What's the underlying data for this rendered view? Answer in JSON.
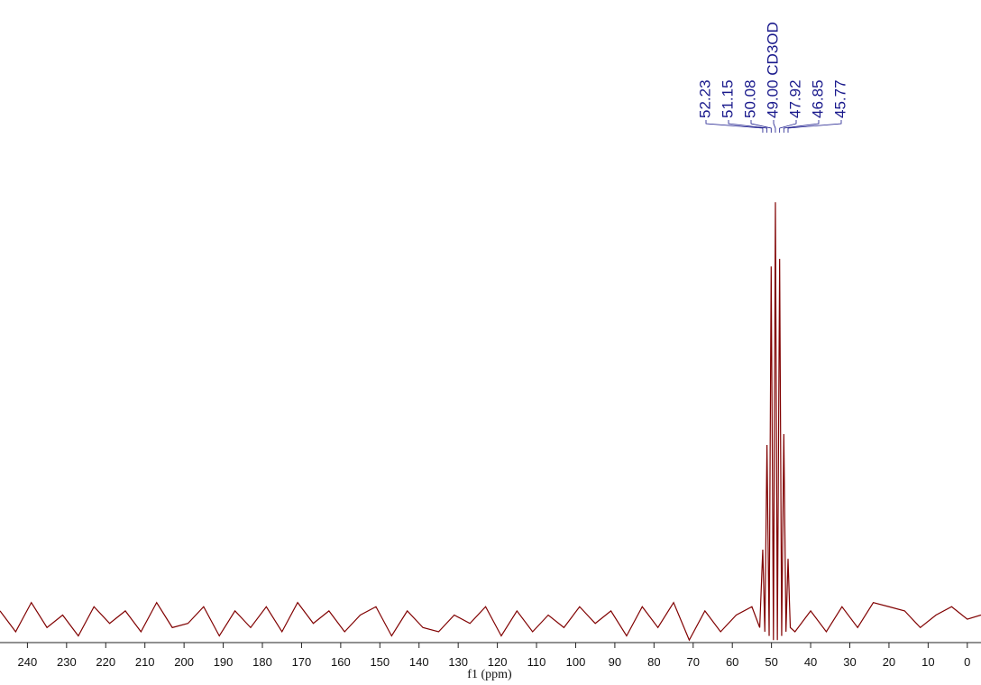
{
  "chart_data": {
    "type": "line",
    "x_label": "f1 (ppm)",
    "color": "#800000",
    "xlim": [
      247,
      -3.5
    ],
    "ylim": [
      -5.6,
      148.5
    ],
    "xticks": [
      240,
      230,
      220,
      210,
      200,
      190,
      180,
      170,
      160,
      150,
      140,
      130,
      120,
      110,
      100,
      90,
      80,
      70,
      60,
      50,
      40,
      30,
      20,
      10,
      0
    ],
    "x": [
      247,
      243,
      239,
      235,
      231,
      227,
      223,
      219,
      215,
      211,
      207,
      203,
      199,
      195,
      191,
      187,
      183,
      179,
      175,
      171,
      167,
      163,
      159,
      155,
      151,
      147,
      143,
      139,
      135,
      131,
      127,
      123,
      119,
      115,
      111,
      107,
      103,
      99,
      95,
      91,
      87,
      83,
      79,
      75,
      71,
      67,
      63,
      59,
      55,
      53,
      52.23,
      51.7,
      51.15,
      50.6,
      50.08,
      49.5,
      49,
      48.5,
      47.92,
      47.4,
      46.85,
      46.3,
      45.77,
      45.2,
      44,
      40,
      36,
      32,
      28,
      24,
      20,
      16,
      12,
      8,
      4,
      0,
      -3.5
    ],
    "values": [
      2,
      -3,
      4,
      -2,
      1,
      -4,
      3,
      -1,
      2,
      -3,
      4,
      -2,
      -1,
      3,
      -4,
      2,
      -2,
      3,
      -3,
      4,
      -1,
      2,
      -3,
      1,
      3,
      -4,
      2,
      -2,
      -3,
      1,
      -1,
      3,
      -4,
      2,
      -3,
      1,
      -2,
      3,
      -1,
      2,
      -4,
      3,
      -2,
      4,
      -5,
      2,
      -3,
      1,
      3,
      -2,
      16.7,
      -3,
      41.8,
      -4,
      84.6,
      -5,
      100,
      -5,
      86.4,
      -4,
      44.4,
      -3,
      14.5,
      -2,
      -3,
      2,
      -3,
      3,
      -2,
      4,
      3,
      2,
      -2,
      1,
      3,
      0,
      1
    ],
    "peak_labels": {
      "color": "#1a1a8c",
      "values": [
        52.23,
        51.15,
        50.08,
        49.0,
        47.92,
        46.85,
        45.77
      ],
      "value_labels": [
        "52.23",
        "51.15",
        "50.08",
        "49.00 CD3OD",
        "47.92",
        "46.85",
        "45.77"
      ]
    }
  }
}
